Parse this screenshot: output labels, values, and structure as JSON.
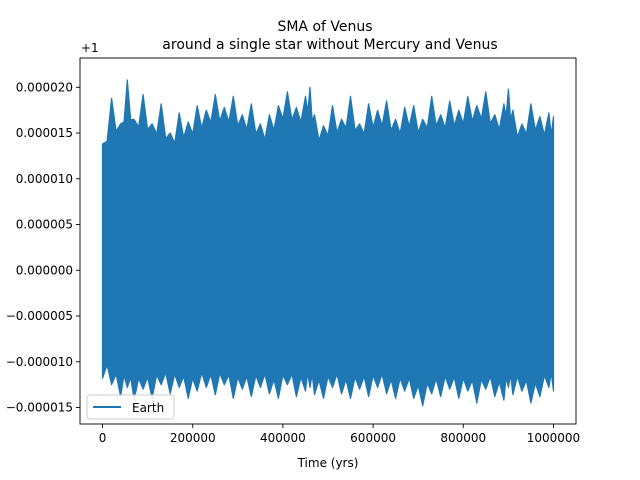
{
  "chart_data": {
    "type": "line",
    "title_line1": "SMA of Venus",
    "title_line2": "around a single star without Mercury and Venus",
    "xlabel": "Time (yrs)",
    "ylabel": "",
    "y_offset_label": "+1",
    "xlim": [
      -50000,
      1050000
    ],
    "ylim": [
      -1.68e-05,
      2.32e-05
    ],
    "x_ticks": [
      0,
      200000,
      400000,
      600000,
      800000,
      1000000
    ],
    "x_tick_labels": [
      "0",
      "200000",
      "400000",
      "600000",
      "800000",
      "1000000"
    ],
    "y_ticks": [
      -1.5e-05,
      -1e-05,
      -5e-06,
      0,
      5e-06,
      1e-05,
      1.5e-05,
      2e-05
    ],
    "y_tick_labels": [
      "−0.000015",
      "−0.000010",
      "−0.000005",
      "0.000000",
      "0.000005",
      "0.000010",
      "0.000015",
      "0.000020"
    ],
    "legend": {
      "entries": [
        "Earth"
      ],
      "location": "lower-left"
    },
    "colors": {
      "series": "#1f77b4"
    },
    "series": [
      {
        "name": "Earth",
        "band_x": [
          0,
          20000,
          40000,
          55000,
          70000,
          90000,
          110000,
          130000,
          150000,
          170000,
          190000,
          210000,
          230000,
          250000,
          270000,
          290000,
          310000,
          330000,
          350000,
          370000,
          390000,
          410000,
          430000,
          450000,
          460000,
          470000,
          490000,
          510000,
          530000,
          550000,
          570000,
          590000,
          610000,
          630000,
          650000,
          670000,
          690000,
          710000,
          730000,
          750000,
          770000,
          790000,
          810000,
          830000,
          850000,
          870000,
          890000,
          900000,
          910000,
          930000,
          950000,
          970000,
          990000,
          1000000
        ],
        "upper": [
          1.38e-05,
          1.88e-05,
          1.6e-05,
          2.08e-05,
          1.65e-05,
          1.92e-05,
          1.6e-05,
          1.82e-05,
          1.5e-05,
          1.72e-05,
          1.62e-05,
          1.8e-05,
          1.75e-05,
          1.92e-05,
          1.78e-05,
          1.9e-05,
          1.7e-05,
          1.82e-05,
          1.6e-05,
          1.7e-05,
          1.8e-05,
          1.95e-05,
          1.78e-05,
          1.9e-05,
          2e-05,
          1.7e-05,
          1.58e-05,
          1.8e-05,
          1.65e-05,
          1.9e-05,
          1.6e-05,
          1.82e-05,
          1.75e-05,
          1.85e-05,
          1.65e-05,
          1.78e-05,
          1.8e-05,
          1.65e-05,
          1.9e-05,
          1.7e-05,
          1.85e-05,
          1.75e-05,
          1.9e-05,
          1.8e-05,
          1.95e-05,
          1.7e-05,
          1.82e-05,
          1.98e-05,
          1.75e-05,
          1.6e-05,
          1.82e-05,
          1.68e-05,
          1.72e-05,
          1.68e-05
        ],
        "lower": [
          -1.18e-05,
          -1.25e-05,
          -1.38e-05,
          -1.28e-05,
          -1.42e-05,
          -1.3e-05,
          -1.4e-05,
          -1.25e-05,
          -1.35e-05,
          -1.28e-05,
          -1.4e-05,
          -1.32e-05,
          -1.28e-05,
          -1.36e-05,
          -1.25e-05,
          -1.4e-05,
          -1.3e-05,
          -1.38e-05,
          -1.28e-05,
          -1.35e-05,
          -1.4e-05,
          -1.25e-05,
          -1.38e-05,
          -1.32e-05,
          -1.28e-05,
          -1.36e-05,
          -1.4e-05,
          -1.28e-05,
          -1.35e-05,
          -1.4e-05,
          -1.3e-05,
          -1.38e-05,
          -1.28e-05,
          -1.35e-05,
          -1.4e-05,
          -1.32e-05,
          -1.4e-05,
          -1.48e-05,
          -1.35e-05,
          -1.38e-05,
          -1.3e-05,
          -1.4e-05,
          -1.32e-05,
          -1.45e-05,
          -1.3e-05,
          -1.38e-05,
          -1.42e-05,
          -1.28e-05,
          -1.36e-05,
          -1.32e-05,
          -1.45e-05,
          -1.38e-05,
          -1.28e-05,
          -1.32e-05
        ]
      }
    ]
  }
}
